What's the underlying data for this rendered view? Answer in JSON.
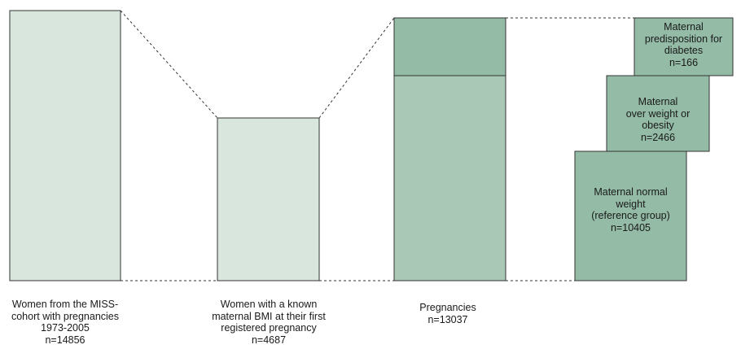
{
  "colors": {
    "light_fill": "#d9e6de",
    "mid_fill": "#a9c9b6",
    "dark_fill": "#93bba5",
    "stroke": "#333333"
  },
  "bars": [
    {
      "id": "miss-cohort",
      "caption": "Women from the MISS-\ncohort with pregnancies\n1973-2005\nn=14856"
    },
    {
      "id": "known-bmi",
      "caption": "Women with a known\nmaternal BMI at their first\nregistered pregnancy\nn=4687"
    },
    {
      "id": "pregnancies",
      "caption": "Pregnancies\nn=13037"
    }
  ],
  "groups": [
    {
      "id": "diabetes",
      "label": "Maternal\npredisposition for\ndiabetes\nn=166"
    },
    {
      "id": "overweight",
      "label": "Maternal\nover weight or\nobesity\nn=2466"
    },
    {
      "id": "normal",
      "label": "Maternal normal\nweight\n(reference group)\nn=10405"
    }
  ]
}
